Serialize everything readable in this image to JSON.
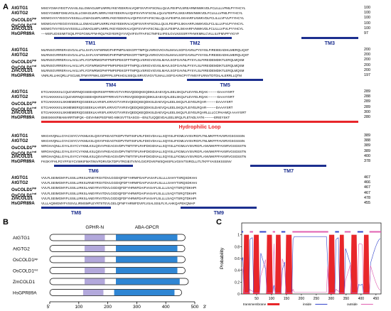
{
  "panels": {
    "a": "A",
    "b": "B",
    "c": "C"
  },
  "alignment": {
    "blocks": [
      {
        "rows": [
          {
            "name": "AtGTG1",
            "seq": "MSGYGWAIYEGTVVIASLSLLGWAGLWFLNRRLYKEYEEKRALVQIIFSVVFAFSCNLLQLVLFEIIPVLSREARMINWKVDLFCLILLLVFMLPYYHCYL",
            "end": "100"
          },
          {
            "name": "AtGTG2",
            "seq": "MSGYGWIEFGMLVIGLSLLGWAGLWFLNRRLYKEYEEKRALVQIIFSVVFAFSCNLLQLVLFEIIPVLSKEARMVNWKVDLFCLILLLVFMLPYYHCYL",
            "end": "100"
          },
          {
            "name": "OsCOLD1",
            "sup": "jap",
            "seq": "MGWGVVVYEGGVVSSSLLLGWAGLWFLNRRLYKEYEEKRALVQIIFSVVFAFSCNLLQLVLFEIIPVLSKHARFLNWKVDLFCLILLLVFVLPYYHCYL",
            "end": "100"
          },
          {
            "name": "OsCOLD1",
            "sup": "ind",
            "seq": "MGWGAVVYEGGVVSSSLLLGWAGLWFLNRRLYKEYEEKRALVQIIFSVVFAFSCNLLQLVLFEIIPVLSKHARFLNWKVDLFCLILLLVFVLPYYHCYL",
            "end": "100"
          },
          {
            "name": "ZmCOLD1",
            "seq": "MGWGTVVYEGAVVSSSLLLGWAGLWFLNRRLYKEYEEKRALVQIIFSVVFAFSCNLLQLVLFEIIPVLSKHARFVNWKVDLFCLILLLVFVLPYYHCYL",
            "end": "100"
          },
          {
            "name": "HsGPR89A",
            "seq": "----MSFLIDSSIMITSQILFFGFGWLFFM-RQLFKDYEIRQYVVQVIFSVTFAFSCTMFELIIFEILGVLNSSSRYFHWKMNLCVILLILVFMVPFYIGYF",
            "end": "97"
          }
        ],
        "bars": [
          {
            "label": "TM1",
            "start": 4,
            "end": 27
          },
          {
            "label": "TM2",
            "start": 37,
            "end": 60
          },
          {
            "label": "TM3",
            "start": 82,
            "end": 100
          }
        ]
      },
      {
        "rows": [
          {
            "name": "AtGTG1",
            "seq": "MLRNSGVRRERASVGALLFLLSAFLYAFWRMGPHFPMPSAEKGFFTMPQLVSRIGVIGVSLMAVLSGFGAVNLPYSYISLFIREIEEADIKLMERQLIQST",
            "end": "200"
          },
          {
            "name": "AtGTG2",
            "seq": "MLRNSGVRRERASVGALLFLLSAFLYAFWRMGPHFPMPSPEKGFFTMPQLVSRIGVIGVSLMAVLSGFGAVNLPYSYISLFIREIEEADIKLMERQLIQST",
            "end": "200"
          },
          {
            "name": "OsCOLD1",
            "sup": "jap",
            "seq": "MLRNSGVRRERAALAVLLVFLYGFWRMGPHFPMPSPEKGFFTMPQLVSRIGVIGVSLMAVLSGFGAVNLPYSYLSLFIREIDEMDIKTLERQLMQSM",
            "end": "200"
          },
          {
            "name": "OsCOLD1",
            "sup": "ind",
            "seq": "MLRNSGVRRERAALAVLLVFLYGFWRMGPHFPMPSPEKGFFTMPQLVSRIGVIGVSLMAVLSGFGAVNLPYSYLSLFIREIDEMDIKTLERQLMQSM",
            "end": "200"
          },
          {
            "name": "ZmCOLD1",
            "seq": "MLRNSGVRRERAALAVLLVFLYGFWRMGPHFPMPSPEKGFFTMPQLVSRIGVIGVSLMAVLSGFGAVNLPYSYLSLFIREIDEMDIKTLERQLMQSM",
            "end": "200"
          },
          {
            "name": "HsGPR89A",
            "seq": "VNRLRLLHKQRLLFSCLWLTFMYFFWKLGDPFPILSPKHGILSIEQLISRVGVIGVTLMALLSGFGAVNCPYTYMSYFLRNVTDTDILALERRLLQTM",
            "end": "197"
          }
        ],
        "bars": [
          {
            "label": "TM4",
            "start": 12,
            "end": 32
          },
          {
            "label": "TM5",
            "start": 46,
            "end": 70
          }
        ]
      },
      {
        "rows": [
          {
            "name": "AtGTG1",
            "seq": "ETCIAKKKKIILCQLEVERNQGSEEHQKRSSFFRRIVGTVVRSVQDDQKEQDIKILEAEVQALEELSKQLFLEVYELRQAK---------DAAAYSRT",
            "end": "289"
          },
          {
            "name": "AtGTG2",
            "seq": "ETCIAKKKKIILCQLEVERNQGSEEHQKRSSFFRRIVGTVVRSVQDDQKEQDIKILEAEVQALEELSKQLFLEVYELRQAK---------DAAAYSRT",
            "end": "288"
          },
          {
            "name": "OsCOLD1",
            "sup": "jap",
            "seq": "ETCIAKKKKIILSKMEMERIQGSEEKLKARSFLKRIVGTVVRSVQEDQKEQDIKSLDAEVQALEELSKQLFLEIYELRQAR---------DAAAYSRT",
            "end": "289"
          },
          {
            "name": "OsCOLD1",
            "sup": "ind",
            "seq": "ETCIAKKKKIILSKMEMERIQGSEEKLKARSFLKRIVGTVVRSVQEDQKEQDIKSLDAEVQALEELSKQLFLEIYELRQAR---------DAAAYSRT",
            "end": "289"
          },
          {
            "name": "ZmCOLD1",
            "seq": "ETCIAKKKKIILSKMEMERIQGSEEKLKARSFLKRIVGTVVRSVQEDQKEQDIKSLDAEVQALEELSKQLFLEIYELRQARLLLLCCPAIAMQI AAAYSRT",
            "end": "300"
          },
          {
            "name": "HsGPR89A",
            "seq": "DMIISKKKRMAMARRTMFQK--GEVHNKPSGFWG-MIKSVTTSASGS---ENLTLIQQEVDALEELSRQLFLETADLYATK---------ERIEYSKT",
            "end": "280"
          }
        ],
        "bars": [
          {
            "label": "Hydrophilic Loop",
            "start": 0,
            "end": 100,
            "red": true
          }
        ]
      },
      {
        "rows": [
          {
            "name": "AtGTG1",
            "seq": "WKGHVQNLLGYACSIYCVYKMLKSLQSVVFKEAGTKDPVTMTISIFLRLFDIGVDAALLSQYISLIFIGMLVVISVRGFLTNLMKFFFAVSRVGSGSSSN",
            "end": "389"
          },
          {
            "name": "AtGTG2",
            "seq": "WKGHVQNLLGYACSIYCVYKMLKSLQSVVFKEAGTKDPVTMTISIFLRLFDIGVDAALLSQYISLIFIGMLVVISVRGFLTNLMKFFFAVSRVGSGSSSN",
            "end": "388"
          },
          {
            "name": "OsCOLD1",
            "sup": "jap",
            "seq": "WRGHAQNLLGYALSVYCVYKMLKSLQSVVFKEAGSVDPVTMTITIFLRHFDIGIDVALLSQYISLLFIGMLVVISVRGFLANVMKFFFAVSRVGSGSSTN",
            "end": "389"
          },
          {
            "name": "OsCOLD1",
            "sup": "ind",
            "seq": "WRGHAQNLLGYALSVYCVYKMLKSLQSVVFKEAGSVDPVTMTITIFLRHFDIGIDVALLSQYISLLFIGMLVVISVRGFLANVMKFFFAVSRVGSGSSTN",
            "end": "389"
          },
          {
            "name": "ZmCOLD1",
            "seq": "WRGHAQNLLGYALSVYCVYKMLKSLQSVVFKEAGSVDPVTMTITIFLRHFDIGIDVALLSQYISLLFIGMLVVISVRGFLANVMKFFFAVSRVGSGSSTN",
            "end": "400"
          },
          {
            "name": "HsGPR89A",
            "seq": "FKGKYFHLFGYFFSIYCVWKIFMATINIVFDRVGKTDPVTRGIEITVNYLGIGFDVKFWSQHISFILVGIIIVTSIRGLLITLTKFFYAISSKSSSNV",
            "end": "378"
          }
        ],
        "bars": [
          {
            "label": "TM6",
            "start": 4,
            "end": 29
          },
          {
            "label": "TM7",
            "start": 66,
            "end": 90
          }
        ]
      },
      {
        "rows": [
          {
            "name": "AtGTG1",
            "seq": "VVLFLSEIMGMYFLSSILLIRKSLRNEYRGIITDVLGGDIQFDFYHRWFDAIFVASAFLSLLLLSAHYTSRQSDKHAI",
            "end": "467"
          },
          {
            "name": "AtGTG2",
            "seq": "VVLFLSEIMGMYFLSSILLIRKSLRNEYRGIITDVLGGDIQFDFYHRWFDAIFVASAFLSLLLLSAHYTSRQSDKHAI",
            "end": "466"
          },
          {
            "name": "OsCOLD1",
            "sup": "jap",
            "seq": "VVLFLSEIMGMYFLSSILLIRKSLANEYRVIITDVLGGDIQFDFYHRWFDAIFVASAFLSLLLLSAQYTSRQTDKHPI",
            "end": "467"
          },
          {
            "name": "OsCOLD1",
            "sup": "ind",
            "seq": "VVLFLSEIMGMYFLSSILLIRKSLANEYRVIITDVLGGDIQFDFYHRWFDAIFVASAFLSLLLLSAQYTSRQTDKHPI",
            "end": "467"
          },
          {
            "name": "ZmCOLD1",
            "seq": "VVLFLSEIMGMYFLSSILLIRKSLANEYRVIITDVLGGDIQFDFYHRWFDAIFVASAFLSLLLLSAQYTSRQTDKHPI",
            "end": "478"
          },
          {
            "name": "HsGPR89A",
            "seq": "VLLLAQIMGMYFVSSVLLIRMSMPLEYRTIITEVLGELQFNFYHRWFDVIFLVSALSSILFLYLAHKQAPEKQMAP",
            "end": "455"
          }
        ],
        "bars": [
          {
            "label": "TM8",
            "start": 0,
            "end": 22
          },
          {
            "label": "TM9",
            "start": 44,
            "end": 68
          }
        ]
      }
    ]
  },
  "panel_b": {
    "header_left": "GPHR-N",
    "header_right": "ABA-GPCR",
    "axis_ticks": [
      "5'",
      "100",
      "200",
      "300",
      "400",
      "500",
      "3'"
    ],
    "proteins": [
      {
        "name": "AtGTG1",
        "length": 467,
        "gphr": [
          120,
          190
        ],
        "aba": [
          228,
          440
        ]
      },
      {
        "name": "AtGTG2",
        "length": 466,
        "gphr": [
          120,
          190
        ],
        "aba": [
          228,
          440
        ]
      },
      {
        "name": "OsCOLD1",
        "sup": "jap",
        "length": 467,
        "gphr": [
          120,
          190
        ],
        "aba": [
          228,
          440
        ]
      },
      {
        "name": "OsCOLD1",
        "sup": "ind",
        "length": 467,
        "gphr": [
          120,
          190
        ],
        "aba": [
          228,
          440
        ]
      },
      {
        "name": "ZmCOLD1",
        "length": 478,
        "gphr": [
          120,
          190
        ],
        "aba": [
          228,
          448
        ]
      },
      {
        "name": "HsGPR89A",
        "length": 455,
        "gphr": [
          115,
          185
        ],
        "aba": [
          222,
          430
        ]
      }
    ],
    "colors": {
      "gphr": "#b3a9dc",
      "aba": "#2f86d4",
      "body": "#ffffff"
    }
  },
  "panel_c": {
    "ylabel": "Probability",
    "x_ticks": [
      "50",
      "100",
      "150",
      "200",
      "250",
      "300",
      "350",
      "400",
      "450"
    ],
    "y_ticks": [
      "0",
      "0.2",
      "0.4",
      "0.6",
      "0.8",
      "1"
    ],
    "legend": [
      "transmembrane",
      "inside",
      "outside"
    ],
    "colors": {
      "tm": "#e8262a",
      "inside": "#3344cc",
      "outside": "#e060b0"
    },
    "chart_data": {
      "type": "area",
      "xlim": [
        0,
        467
      ],
      "ylim": [
        0,
        1.2
      ],
      "tm_segments": [
        [
          5,
          27
        ],
        [
          38,
          60
        ],
        [
          82,
          104
        ],
        [
          112,
          133
        ],
        [
          146,
          170
        ],
        [
          290,
          313
        ],
        [
          326,
          345
        ],
        [
          365,
          388
        ],
        [
          407,
          428
        ]
      ]
    }
  }
}
